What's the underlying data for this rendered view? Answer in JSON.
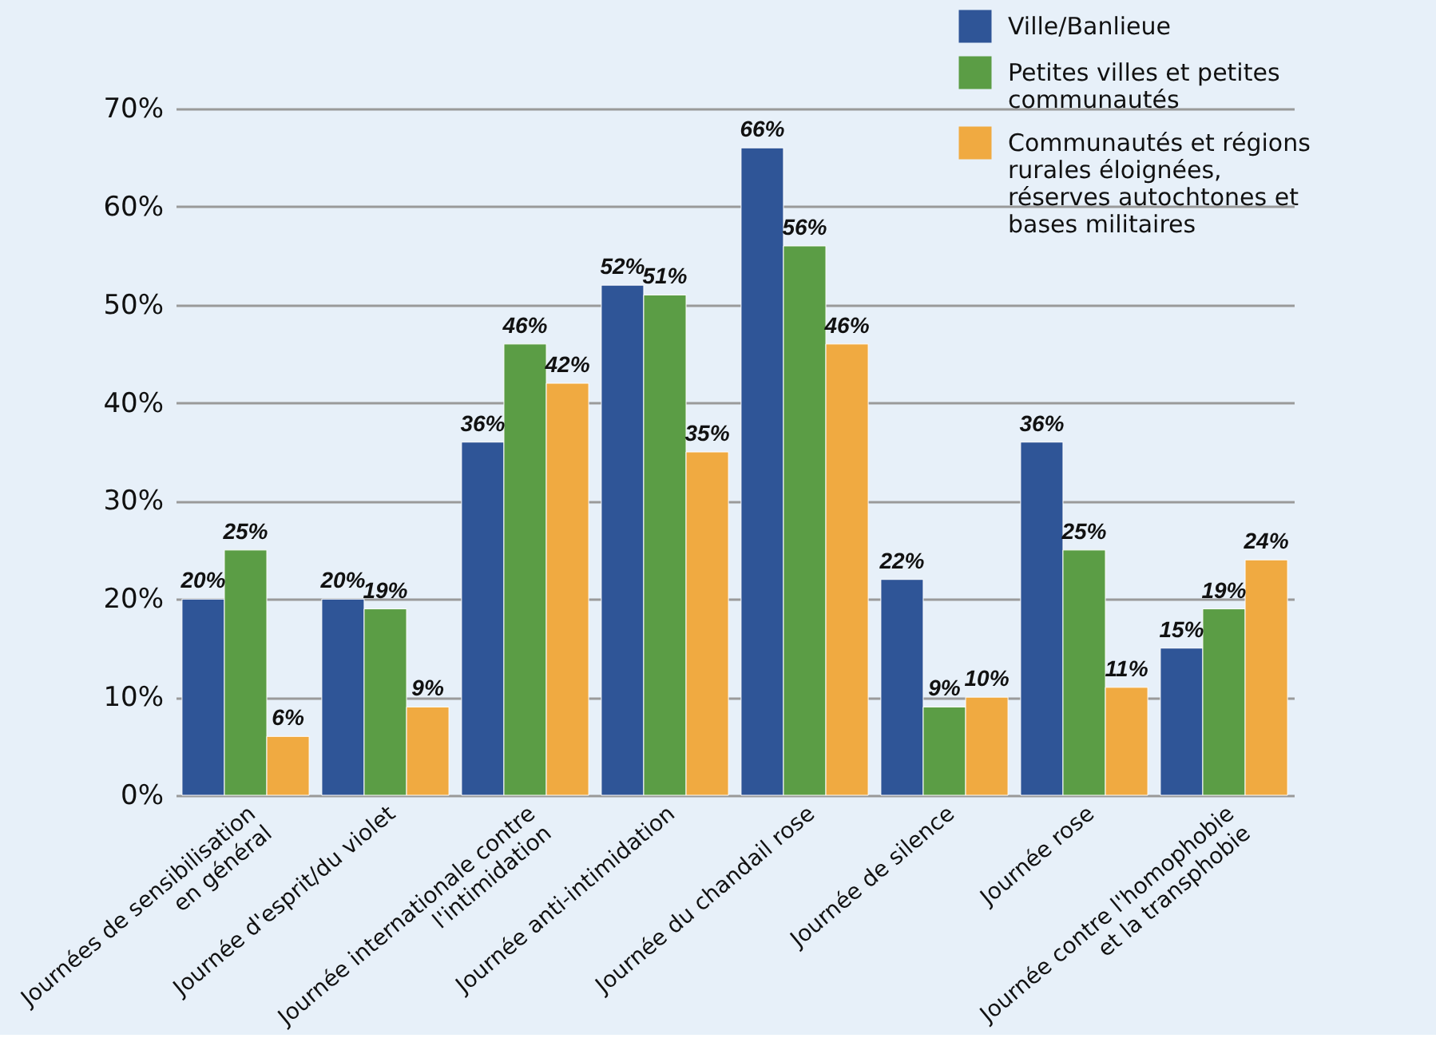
{
  "chart_data": {
    "type": "bar",
    "categories": [
      "Journées de sensibilisation en général",
      "Journée d'esprit/du violet",
      "Journée internationale contre l'intimidation",
      "Journée anti-intimidation",
      "Journée du chandail rose",
      "Journée de silence",
      "Journée rose",
      "Journée contre l'homophobie et la transphobie"
    ],
    "series": [
      {
        "name": "Ville/Banlieue",
        "color": "#2f5597",
        "values": [
          20,
          20,
          36,
          52,
          66,
          22,
          36,
          15
        ],
        "value_labels": [
          "20%",
          "20%",
          "36%",
          "52%",
          "66%",
          "22%",
          "36%",
          "15%"
        ]
      },
      {
        "name": "Petites villes et petites communautés",
        "color": "#5b9d45",
        "values": [
          25,
          19,
          46,
          51,
          56,
          9,
          25,
          19
        ],
        "value_labels": [
          "25%",
          "19%",
          "46%",
          "51%",
          "56%",
          "9%",
          "25%",
          "19%"
        ]
      },
      {
        "name": "Communautés et régions rurales éloignées, réserves autochtones et bases militaires",
        "color": "#f0aa41",
        "values": [
          6,
          9,
          42,
          35,
          46,
          10,
          11,
          24
        ],
        "value_labels": [
          "6%",
          "9%",
          "42%",
          "35%",
          "46%",
          "10%",
          "11%",
          "24%"
        ]
      }
    ],
    "ylim": [
      0,
      70
    ],
    "yticks": [
      {
        "value": 0,
        "label": "0%"
      },
      {
        "value": 10,
        "label": "10%"
      },
      {
        "value": 20,
        "label": "20%"
      },
      {
        "value": 30,
        "label": "30%"
      },
      {
        "value": 40,
        "label": "40%"
      },
      {
        "value": 50,
        "label": "50%"
      },
      {
        "value": 60,
        "label": "60%"
      },
      {
        "value": 70,
        "label": "70%"
      }
    ],
    "grid": "y",
    "legend": "top right"
  }
}
